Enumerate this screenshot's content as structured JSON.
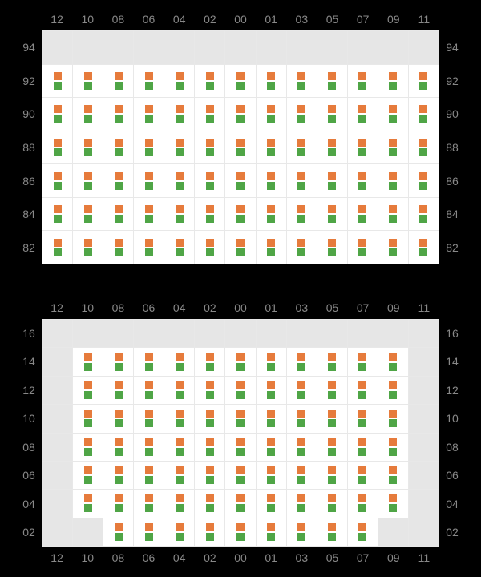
{
  "colors": {
    "orange": "#e67b3c",
    "green": "#4fa546",
    "shaded": "#e6e6e6",
    "filled": "#ffffff",
    "gridline": "#e8e8e8",
    "label": "#888888",
    "background": "#000000"
  },
  "marker": {
    "width": 10,
    "height": 10,
    "gap": 2
  },
  "label_fontsize": 14,
  "top": {
    "x": [
      "12",
      "10",
      "08",
      "06",
      "04",
      "02",
      "00",
      "01",
      "03",
      "05",
      "07",
      "09",
      "11"
    ],
    "y": [
      "94",
      "92",
      "90",
      "88",
      "86",
      "84",
      "82"
    ],
    "shaded_rows": [
      0
    ],
    "shaded_cells": [],
    "fill_pattern": "all_except_shaded"
  },
  "bottom": {
    "x": [
      "12",
      "10",
      "08",
      "06",
      "04",
      "02",
      "00",
      "01",
      "03",
      "05",
      "07",
      "09",
      "11"
    ],
    "y": [
      "16",
      "14",
      "12",
      "10",
      "08",
      "06",
      "04",
      "02"
    ],
    "shaded_rows": [
      0
    ],
    "shaded_cells": [
      [
        1,
        0
      ],
      [
        1,
        12
      ],
      [
        2,
        0
      ],
      [
        2,
        12
      ],
      [
        3,
        0
      ],
      [
        3,
        12
      ],
      [
        4,
        0
      ],
      [
        4,
        12
      ],
      [
        5,
        0
      ],
      [
        5,
        12
      ],
      [
        6,
        0
      ],
      [
        6,
        12
      ],
      [
        7,
        0
      ],
      [
        7,
        1
      ],
      [
        7,
        11
      ],
      [
        7,
        12
      ]
    ],
    "fill_pattern": "all_except_shaded"
  }
}
